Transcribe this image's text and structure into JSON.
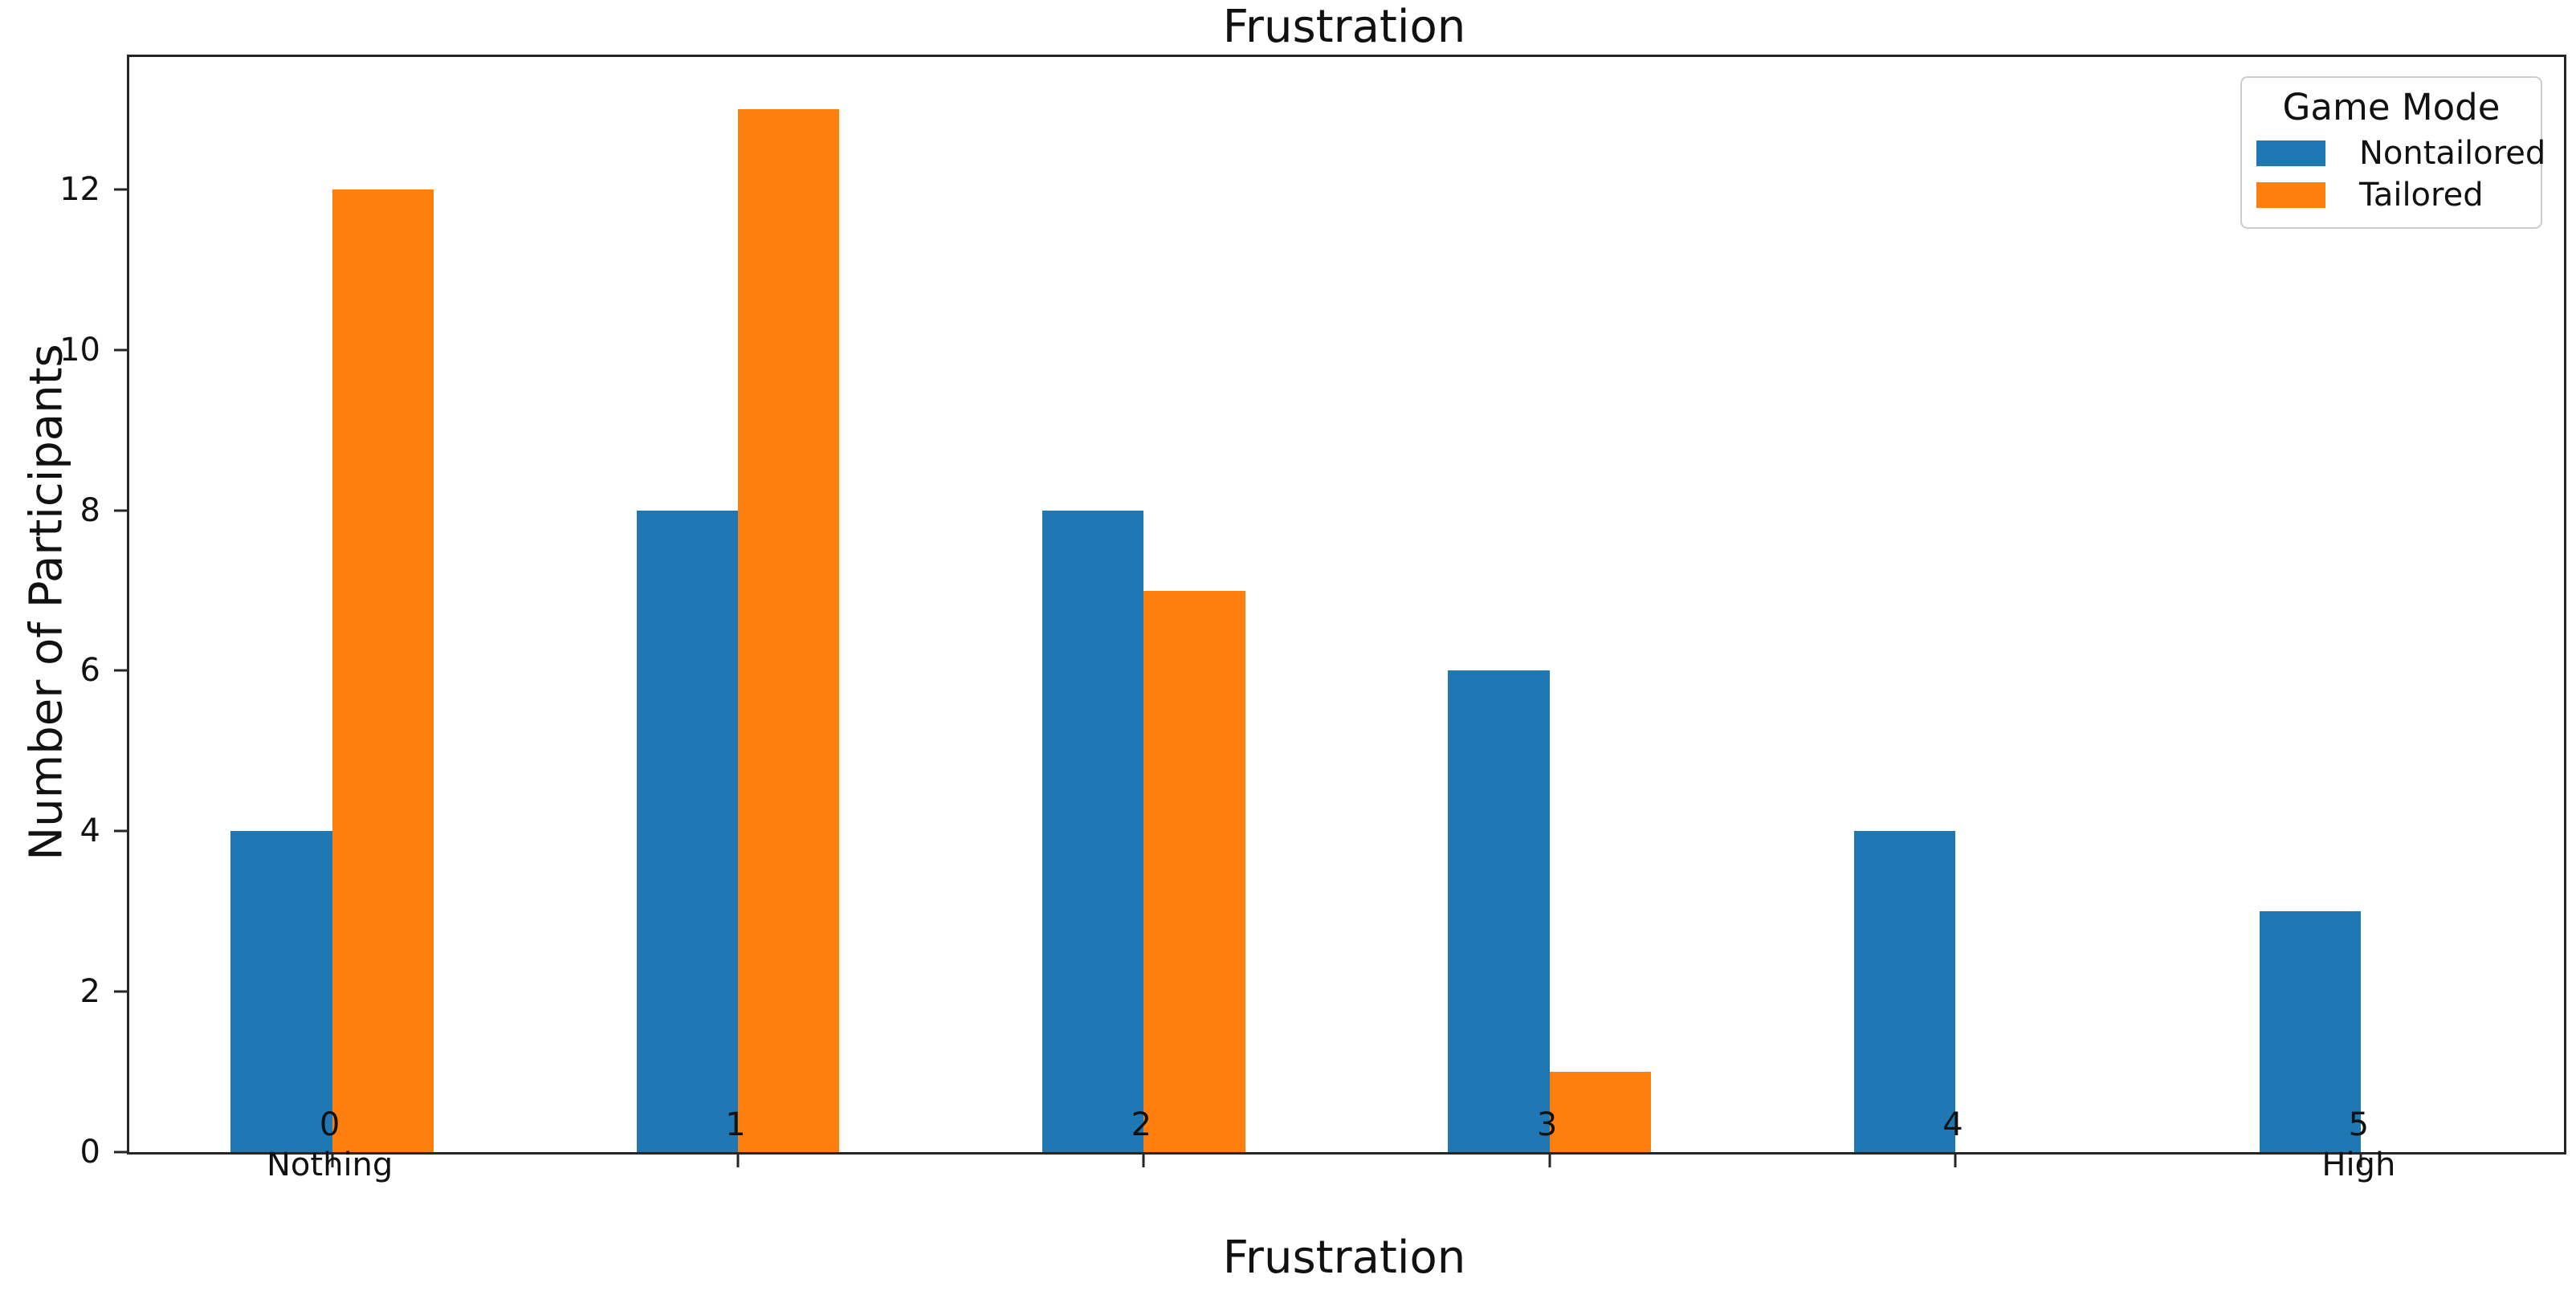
{
  "figure": {
    "background": "#ffffff",
    "text_color": "#111111",
    "spine_color": "#262626"
  },
  "chart_data": {
    "type": "bar",
    "title": "Frustration",
    "xlabel": "Frustration",
    "ylabel": "Number of Participants",
    "categories": [
      "0",
      "1",
      "2",
      "3",
      "4",
      "5"
    ],
    "category_sublabels": [
      "Nothing",
      "",
      "",
      "",
      "",
      "High"
    ],
    "series": [
      {
        "name": "Nontailored",
        "color": "#1f77b4",
        "values": [
          4,
          8,
          8,
          6,
          4,
          3
        ]
      },
      {
        "name": "Tailored",
        "color": "#ff7f0e",
        "values": [
          12,
          13,
          7,
          1,
          0,
          0
        ]
      }
    ],
    "yticks": [
      0,
      2,
      4,
      6,
      8,
      10,
      12
    ],
    "ylim": [
      0,
      13.65
    ],
    "xlim": [
      -0.5,
      5.5
    ],
    "bar_width": 0.25,
    "grid": false,
    "legend": {
      "title": "Game Mode",
      "position": "upper right",
      "entries": [
        "Nontailored",
        "Tailored"
      ]
    }
  }
}
